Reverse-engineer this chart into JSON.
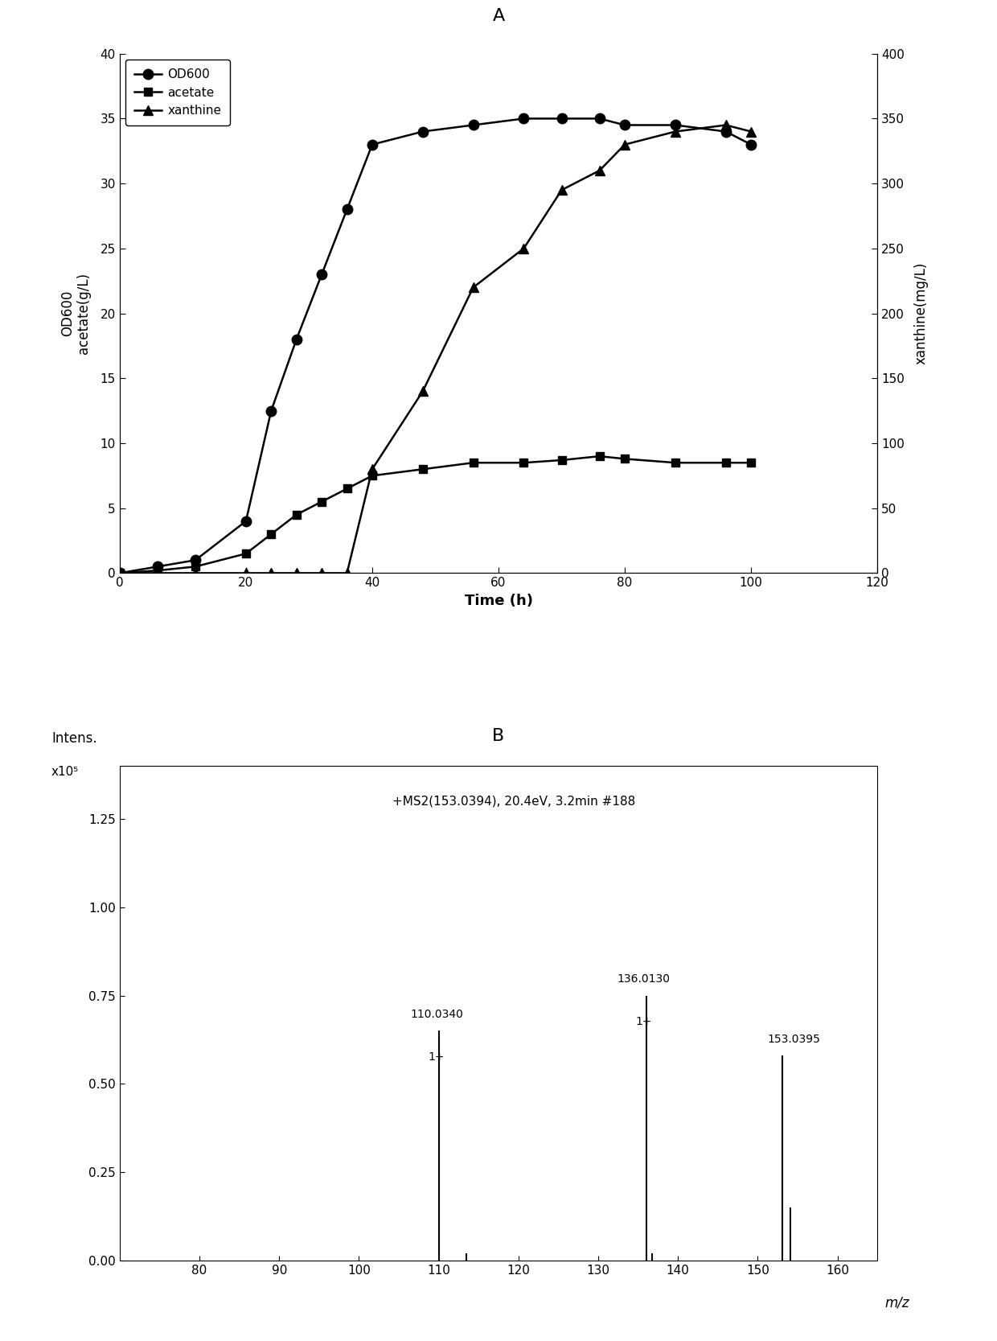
{
  "panel_A_label": "A",
  "panel_B_label": "B",
  "od600_time": [
    0,
    6,
    12,
    20,
    24,
    28,
    32,
    36,
    40,
    48,
    56,
    64,
    70,
    76,
    80,
    88,
    96,
    100
  ],
  "od600_values": [
    0,
    0.5,
    1,
    4,
    12.5,
    18,
    23,
    28,
    33,
    34,
    34.5,
    35,
    35,
    35,
    34.5,
    34.5,
    34,
    33
  ],
  "acetate_time": [
    0,
    6,
    12,
    20,
    24,
    28,
    32,
    36,
    40,
    48,
    56,
    64,
    70,
    76,
    80,
    88,
    96,
    100
  ],
  "acetate_values": [
    0,
    0.2,
    0.5,
    1.5,
    3,
    4.5,
    5.5,
    6.5,
    7.5,
    8.0,
    8.5,
    8.5,
    8.7,
    9.0,
    8.8,
    8.5,
    8.5,
    8.5
  ],
  "xanthine_time": [
    0,
    6,
    12,
    20,
    24,
    28,
    32,
    36,
    40,
    48,
    56,
    64,
    70,
    76,
    80,
    88,
    96,
    100
  ],
  "xanthine_values": [
    0,
    0,
    0,
    0,
    0,
    0,
    0,
    0,
    80,
    140,
    220,
    250,
    295,
    310,
    330,
    340,
    345,
    340
  ],
  "left_ylim": [
    0,
    40
  ],
  "left_yticks": [
    0,
    5,
    10,
    15,
    20,
    25,
    30,
    35,
    40
  ],
  "right_ylim": [
    0,
    400
  ],
  "right_yticks": [
    0,
    50,
    100,
    150,
    200,
    250,
    300,
    350,
    400
  ],
  "xlim": [
    0,
    120
  ],
  "xticks": [
    0,
    20,
    40,
    60,
    80,
    100,
    120
  ],
  "xlabel": "Time (h)",
  "ylabel_left": "OD600\nacetate(g/L)",
  "ylabel_right": "xanthine(mg/L)",
  "legend_od600": "OD600",
  "legend_acetate": "acetate",
  "legend_xanthine": "xanthine",
  "ms_peaks": [
    {
      "mz": 110.034,
      "intensity": 0.65,
      "label": "110.0340",
      "charge": "1+"
    },
    {
      "mz": 113.5,
      "intensity": 0.02,
      "label": "",
      "charge": ""
    },
    {
      "mz": 136.013,
      "intensity": 0.75,
      "label": "136.0130",
      "charge": "1+"
    },
    {
      "mz": 136.8,
      "intensity": 0.02,
      "label": "",
      "charge": ""
    },
    {
      "mz": 153.039,
      "intensity": 0.58,
      "label": "153.0395",
      "charge": ""
    },
    {
      "mz": 154.1,
      "intensity": 0.15,
      "label": "",
      "charge": ""
    }
  ],
  "ms_annotation": "+MS2(153.0394), 20.4eV, 3.2min #188",
  "ms_xlim": [
    70,
    165
  ],
  "ms_xticks": [
    80,
    90,
    100,
    110,
    120,
    130,
    140,
    150,
    160
  ],
  "ms_xlabel": "m/z",
  "ms_ylabel_intens": "Intens.",
  "ms_ylabel_scale": "x10⁵",
  "ms_yticks": [
    0.0,
    0.25,
    0.5,
    0.75,
    1.0,
    1.25
  ],
  "ms_ylim": [
    0,
    1.4
  ],
  "background_color": "#ffffff",
  "line_color": "#000000"
}
